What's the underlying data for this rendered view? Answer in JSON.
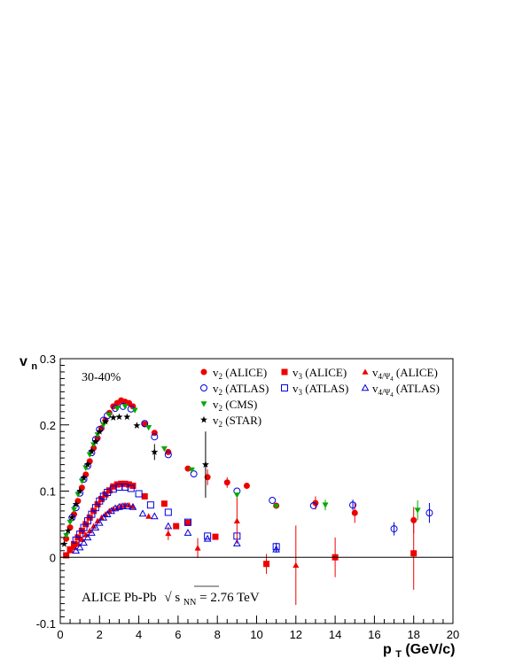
{
  "chart_data": {
    "type": "scatter",
    "centrality_label": "30-40%",
    "annotation": {
      "prefix": "ALICE Pb-Pb",
      "root_symbol": "√",
      "s": "s",
      "sub": "NN",
      "suffix": " = 2.76 TeV"
    },
    "xlabel": {
      "main": "p",
      "sub": "T",
      "unit": " (GeV/c)"
    },
    "ylabel": {
      "main": "v",
      "sub": "n"
    },
    "xlim": [
      0,
      20
    ],
    "ylim": [
      -0.1,
      0.3
    ],
    "x_ticks": [
      "0",
      "2",
      "4",
      "6",
      "8",
      "10",
      "12",
      "14",
      "16",
      "18",
      "20"
    ],
    "y_ticks": [
      "-0.1",
      "0",
      "0.1",
      "0.2",
      "0.3"
    ],
    "reference_line": 0,
    "grid": false,
    "legend_position": "top-right",
    "series": [
      {
        "name": "v2 (ALICE)",
        "legend": {
          "base": "v",
          "sub": "2",
          "suffix": " (ALICE)"
        },
        "marker": "circle-filled",
        "color": "#ee0000",
        "points": [
          [
            0.3,
            0.028
          ],
          [
            0.5,
            0.045
          ],
          [
            0.7,
            0.065
          ],
          [
            0.9,
            0.085
          ],
          [
            1.1,
            0.105
          ],
          [
            1.3,
            0.125
          ],
          [
            1.5,
            0.145
          ],
          [
            1.7,
            0.165
          ],
          [
            1.9,
            0.18
          ],
          [
            2.1,
            0.195
          ],
          [
            2.3,
            0.207
          ],
          [
            2.5,
            0.218
          ],
          [
            2.7,
            0.228
          ],
          [
            2.9,
            0.233
          ],
          [
            3.1,
            0.237
          ],
          [
            3.3,
            0.235
          ],
          [
            3.5,
            0.233
          ],
          [
            3.7,
            0.228
          ],
          [
            4.3,
            0.201
          ],
          [
            4.8,
            0.188
          ],
          [
            5.5,
            0.159
          ],
          [
            6.5,
            0.134
          ],
          [
            7.5,
            0.121
          ],
          [
            8.5,
            0.113
          ],
          [
            9.5,
            0.108
          ],
          [
            11,
            0.078
          ],
          [
            13,
            0.082
          ],
          [
            15,
            0.067
          ],
          [
            18,
            0.056
          ]
        ],
        "errors": [
          [
            7.5,
            0.012
          ],
          [
            8.5,
            0.008
          ],
          [
            13,
            0.01
          ],
          [
            15,
            0.015
          ],
          [
            18,
            0.02
          ]
        ]
      },
      {
        "name": "v2 (ATLAS)",
        "legend": {
          "base": "v",
          "sub": "2",
          "suffix": " (ATLAS)"
        },
        "marker": "circle-open",
        "color": "#0000dd",
        "points": [
          [
            0.6,
            0.06
          ],
          [
            0.8,
            0.075
          ],
          [
            1.0,
            0.097
          ],
          [
            1.2,
            0.118
          ],
          [
            1.4,
            0.138
          ],
          [
            1.6,
            0.158
          ],
          [
            1.8,
            0.178
          ],
          [
            2.0,
            0.193
          ],
          [
            2.2,
            0.207
          ],
          [
            2.4,
            0.214
          ],
          [
            2.8,
            0.225
          ],
          [
            3.2,
            0.228
          ],
          [
            3.6,
            0.224
          ],
          [
            4.3,
            0.202
          ],
          [
            4.8,
            0.182
          ],
          [
            5.5,
            0.155
          ],
          [
            6.8,
            0.126
          ],
          [
            9,
            0.1
          ],
          [
            10.8,
            0.086
          ],
          [
            12.9,
            0.078
          ],
          [
            14.9,
            0.079
          ],
          [
            17,
            0.043
          ],
          [
            18.8,
            0.067
          ]
        ],
        "errors": [
          [
            14.9,
            0.008
          ],
          [
            17,
            0.01
          ],
          [
            18.8,
            0.015
          ]
        ]
      },
      {
        "name": "v2 (CMS)",
        "legend": {
          "base": "v",
          "sub": "2",
          "suffix": " (CMS)"
        },
        "marker": "triangle-down-filled",
        "color": "#00aa00",
        "points": [
          [
            0.3,
            0.033
          ],
          [
            0.5,
            0.053
          ],
          [
            0.7,
            0.072
          ],
          [
            0.9,
            0.095
          ],
          [
            1.1,
            0.115
          ],
          [
            1.3,
            0.135
          ],
          [
            1.5,
            0.155
          ],
          [
            1.7,
            0.17
          ],
          [
            1.9,
            0.185
          ],
          [
            2.2,
            0.2
          ],
          [
            2.5,
            0.215
          ],
          [
            2.9,
            0.225
          ],
          [
            3.3,
            0.228
          ],
          [
            3.8,
            0.222
          ],
          [
            4.5,
            0.196
          ],
          [
            5.3,
            0.164
          ],
          [
            6.7,
            0.132
          ],
          [
            9,
            0.094
          ],
          [
            11,
            0.077
          ],
          [
            13.5,
            0.079
          ],
          [
            18.2,
            0.071
          ]
        ],
        "errors": [
          [
            13.5,
            0.008
          ],
          [
            18.2,
            0.015
          ]
        ]
      },
      {
        "name": "v2 (STAR)",
        "legend": {
          "base": "v",
          "sub": "2",
          "suffix": " (STAR)"
        },
        "marker": "star",
        "color": "#000000",
        "points": [
          [
            0.2,
            0.02
          ],
          [
            0.4,
            0.04
          ],
          [
            0.6,
            0.06
          ],
          [
            0.8,
            0.08
          ],
          [
            1.0,
            0.1
          ],
          [
            1.2,
            0.12
          ],
          [
            1.4,
            0.14
          ],
          [
            1.6,
            0.16
          ],
          [
            1.8,
            0.175
          ],
          [
            2.0,
            0.19
          ],
          [
            2.3,
            0.205
          ],
          [
            2.7,
            0.211
          ],
          [
            3.0,
            0.212
          ],
          [
            3.4,
            0.212
          ],
          [
            3.9,
            0.199
          ],
          [
            4.8,
            0.159
          ],
          [
            7.4,
            0.14
          ]
        ],
        "errors": [
          [
            4.8,
            0.012
          ],
          [
            7.4,
            0.05
          ]
        ]
      },
      {
        "name": "v3 (ALICE)",
        "legend": {
          "base": "v",
          "sub": "3",
          "suffix": " (ALICE)"
        },
        "marker": "square-filled",
        "color": "#ee0000",
        "points": [
          [
            0.3,
            0.003
          ],
          [
            0.5,
            0.012
          ],
          [
            0.7,
            0.02
          ],
          [
            0.9,
            0.03
          ],
          [
            1.1,
            0.04
          ],
          [
            1.3,
            0.05
          ],
          [
            1.5,
            0.06
          ],
          [
            1.7,
            0.07
          ],
          [
            1.9,
            0.08
          ],
          [
            2.1,
            0.088
          ],
          [
            2.3,
            0.095
          ],
          [
            2.5,
            0.101
          ],
          [
            2.7,
            0.107
          ],
          [
            2.9,
            0.11
          ],
          [
            3.1,
            0.111
          ],
          [
            3.3,
            0.111
          ],
          [
            3.5,
            0.11
          ],
          [
            3.7,
            0.108
          ],
          [
            4.3,
            0.092
          ],
          [
            5.3,
            0.081
          ],
          [
            5.9,
            0.047
          ],
          [
            6.5,
            0.052
          ],
          [
            7.9,
            0.031
          ],
          [
            10.5,
            -0.01
          ],
          [
            14,
            0
          ],
          [
            18,
            0.006
          ]
        ],
        "errors": [
          [
            10.5,
            0.015
          ],
          [
            14,
            0.03
          ],
          [
            18,
            0.055
          ]
        ]
      },
      {
        "name": "v3 (ATLAS)",
        "legend": {
          "base": "v",
          "sub": "3",
          "suffix": " (ATLAS)"
        },
        "marker": "square-open",
        "color": "#0000dd",
        "points": [
          [
            0.8,
            0.026
          ],
          [
            1.0,
            0.035
          ],
          [
            1.2,
            0.045
          ],
          [
            1.4,
            0.055
          ],
          [
            1.6,
            0.065
          ],
          [
            1.8,
            0.075
          ],
          [
            2.0,
            0.085
          ],
          [
            2.2,
            0.092
          ],
          [
            2.4,
            0.098
          ],
          [
            2.7,
            0.103
          ],
          [
            3.0,
            0.106
          ],
          [
            3.3,
            0.106
          ],
          [
            3.6,
            0.104
          ],
          [
            4.0,
            0.096
          ],
          [
            4.6,
            0.079
          ],
          [
            5.5,
            0.068
          ],
          [
            6.5,
            0.053
          ],
          [
            7.5,
            0.032
          ],
          [
            9,
            0.032
          ],
          [
            11,
            0.016
          ]
        ],
        "errors": [
          [
            11,
            0.006
          ]
        ]
      },
      {
        "name": "v4/Ψ4 (ALICE)",
        "legend": {
          "base": "v",
          "sub": "4/Ψ",
          "subsub": "4",
          "suffix": " (ALICE)"
        },
        "marker": "triangle-up-filled",
        "color": "#ee0000",
        "points": [
          [
            0.5,
            0.01
          ],
          [
            0.7,
            0.015
          ],
          [
            0.9,
            0.02
          ],
          [
            1.1,
            0.027
          ],
          [
            1.3,
            0.034
          ],
          [
            1.5,
            0.04
          ],
          [
            1.7,
            0.047
          ],
          [
            1.9,
            0.055
          ],
          [
            2.1,
            0.06
          ],
          [
            2.3,
            0.065
          ],
          [
            2.5,
            0.07
          ],
          [
            2.7,
            0.073
          ],
          [
            2.9,
            0.075
          ],
          [
            3.1,
            0.078
          ],
          [
            3.3,
            0.079
          ],
          [
            3.5,
            0.079
          ],
          [
            3.7,
            0.077
          ],
          [
            4.5,
            0.062
          ],
          [
            5.5,
            0.036
          ],
          [
            7,
            0.014
          ],
          [
            9,
            0.055
          ],
          [
            12,
            -0.012
          ]
        ],
        "errors": [
          [
            5.5,
            0.01
          ],
          [
            7,
            0.015
          ],
          [
            9,
            0.035
          ],
          [
            12,
            0.06
          ]
        ]
      },
      {
        "name": "v4/Ψ4 (ATLAS)",
        "legend": {
          "base": "v",
          "sub": "4/Ψ",
          "subsub": "4",
          "suffix": " (ATLAS)"
        },
        "marker": "triangle-up-open",
        "color": "#0000dd",
        "points": [
          [
            0.8,
            0.01
          ],
          [
            1.0,
            0.015
          ],
          [
            1.2,
            0.022
          ],
          [
            1.4,
            0.03
          ],
          [
            1.6,
            0.037
          ],
          [
            1.8,
            0.045
          ],
          [
            2.0,
            0.052
          ],
          [
            2.2,
            0.06
          ],
          [
            2.4,
            0.065
          ],
          [
            2.6,
            0.07
          ],
          [
            2.8,
            0.074
          ],
          [
            3.0,
            0.076
          ],
          [
            3.2,
            0.077
          ],
          [
            3.4,
            0.077
          ],
          [
            3.7,
            0.076
          ],
          [
            4.2,
            0.066
          ],
          [
            4.8,
            0.062
          ],
          [
            5.5,
            0.047
          ],
          [
            6.5,
            0.037
          ],
          [
            7.5,
            0.028
          ],
          [
            9,
            0.021
          ],
          [
            11,
            0.012
          ]
        ],
        "errors": [
          [
            11,
            0.005
          ]
        ]
      }
    ]
  }
}
